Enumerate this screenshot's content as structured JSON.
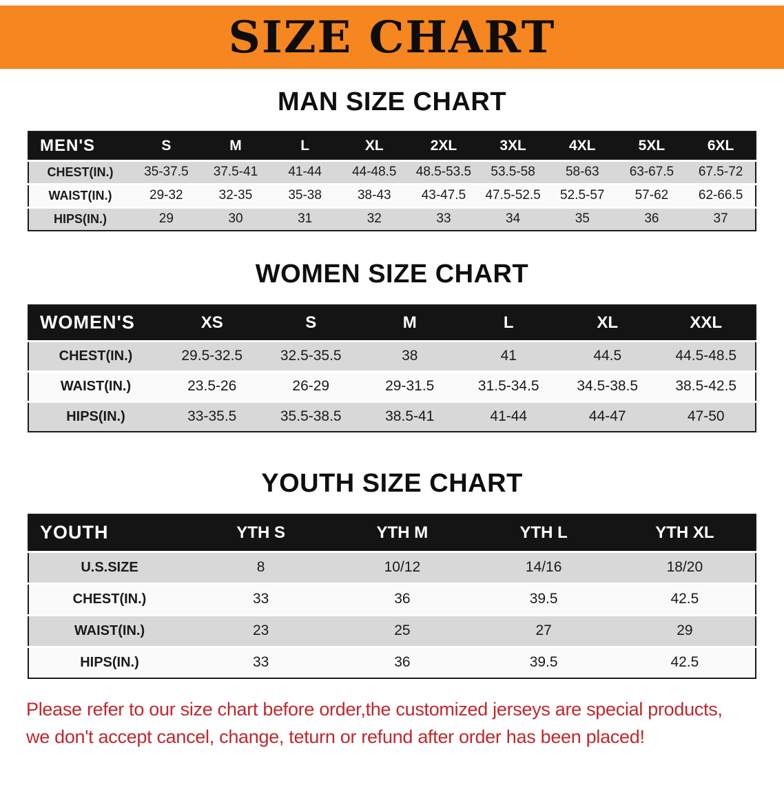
{
  "banner": {
    "title": "SIZE CHART",
    "bg_color": "#F6861F",
    "text_color": "#0D0D0D"
  },
  "sections": {
    "men": {
      "heading": "MAN SIZE CHART"
    },
    "women": {
      "heading": "WOMEN SIZE CHART"
    },
    "youth": {
      "heading": "YOUTH SIZE CHART"
    }
  },
  "tables": {
    "men": {
      "header": [
        "MEN'S",
        "S",
        "M",
        "L",
        "XL",
        "2XL",
        "3XL",
        "4XL",
        "5XL",
        "6XL"
      ],
      "rows": [
        [
          "CHEST(IN.)",
          "35-37.5",
          "37.5-41",
          "41-44",
          "44-48.5",
          "48.5-53.5",
          "53.5-58",
          "58-63",
          "63-67.5",
          "67.5-72"
        ],
        [
          "WAIST(IN.)",
          "29-32",
          "32-35",
          "35-38",
          "38-43",
          "43-47.5",
          "47.5-52.5",
          "52.5-57",
          "57-62",
          "62-66.5"
        ],
        [
          "HIPS(IN.)",
          "29",
          "30",
          "31",
          "32",
          "33",
          "34",
          "35",
          "36",
          "37"
        ]
      ]
    },
    "women": {
      "header": [
        "WOMEN'S",
        "XS",
        "S",
        "M",
        "L",
        "XL",
        "XXL"
      ],
      "rows": [
        [
          "CHEST(IN.)",
          "29.5-32.5",
          "32.5-35.5",
          "38",
          "41",
          "44.5",
          "44.5-48.5"
        ],
        [
          "WAIST(IN.)",
          "23.5-26",
          "26-29",
          "29-31.5",
          "31.5-34.5",
          "34.5-38.5",
          "38.5-42.5"
        ],
        [
          "HIPS(IN.)",
          "33-35.5",
          "35.5-38.5",
          "38.5-41",
          "41-44",
          "44-47",
          "47-50"
        ]
      ]
    },
    "youth": {
      "header": [
        "YOUTH",
        "YTH S",
        "YTH M",
        "YTH L",
        "YTH XL"
      ],
      "rows": [
        [
          "U.S.SIZE",
          "8",
          "10/12",
          "14/16",
          "18/20"
        ],
        [
          "CHEST(IN.)",
          "33",
          "36",
          "39.5",
          "42.5"
        ],
        [
          "WAIST(IN.)",
          "23",
          "25",
          "27",
          "29"
        ],
        [
          "HIPS(IN.)",
          "33",
          "36",
          "39.5",
          "42.5"
        ]
      ]
    }
  },
  "footer": {
    "line1": "Please refer to our size chart before order,the customized jerseys are special products,",
    "line2": "we don't accept cancel, change, teturn or refund after order has been placed!",
    "text_color": "#C1272D"
  },
  "colors": {
    "table_header_bg": "#141414",
    "row_gray": "#D8D8D8",
    "row_light": "#FAFAFA",
    "border": "#1B1B1B"
  }
}
